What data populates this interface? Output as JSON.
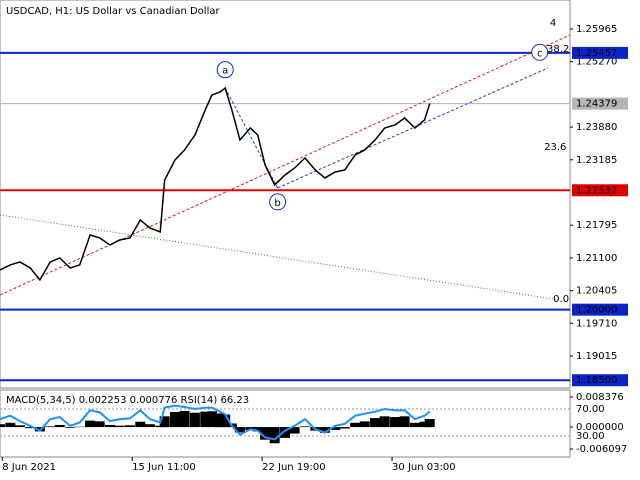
{
  "chart_data": {
    "type": "line",
    "title": "USDCAD, H1:  US Dollar vs Canadian Dollar",
    "x": [
      0,
      14,
      27,
      41,
      54,
      68,
      81,
      95,
      108,
      122,
      135,
      149,
      162,
      176,
      190,
      203,
      217,
      223,
      237,
      250,
      264,
      278,
      287,
      298,
      305,
      314,
      325,
      339,
      349,
      359,
      372,
      386,
      399,
      413,
      427,
      440,
      454,
      467,
      481,
      494,
      508,
      521,
      535,
      548,
      562,
      575,
      582
    ],
    "values": [
      1.20843,
      1.2095,
      1.21014,
      1.20886,
      1.20631,
      1.21014,
      1.21099,
      1.20886,
      1.2095,
      1.21587,
      1.21524,
      1.21375,
      1.21481,
      1.21524,
      1.21906,
      1.21736,
      1.21651,
      1.22756,
      1.23181,
      1.23394,
      1.23712,
      1.24244,
      1.24562,
      1.24626,
      1.24711,
      1.24244,
      1.23606,
      1.23861,
      1.23712,
      1.23075,
      1.2265,
      1.22862,
      1.23011,
      1.23224,
      1.22969,
      1.22799,
      1.22926,
      1.22969,
      1.23287,
      1.23394,
      1.23606,
      1.23861,
      1.23925,
      1.24074,
      1.23861,
      1.24031,
      1.24379
    ],
    "color": "#000000",
    "xlim": [
      0,
      772
    ],
    "xticks": [
      {
        "value": 3,
        "label": "8 Jun 2021"
      },
      {
        "value": 179,
        "label": "15 Jun 11:00"
      },
      {
        "value": 355,
        "label": "22 Jun 19:00"
      },
      {
        "value": 531,
        "label": "30 Jun 03:00"
      }
    ],
    "ylim": [
      1.18335,
      1.26581
    ],
    "yticks": [
      {
        "value": 1.25965,
        "label": "1.25965"
      },
      {
        "value": 1.2527,
        "label": "1.25270"
      },
      {
        "value": 1.2388,
        "label": "1.23880"
      },
      {
        "value": 1.23185,
        "label": "1.23185"
      },
      {
        "value": 1.21795,
        "label": "1.21795"
      },
      {
        "value": 1.211,
        "label": "1.21100"
      },
      {
        "value": 1.20405,
        "label": "1.20405"
      },
      {
        "value": 1.1971,
        "label": "1.19710"
      },
      {
        "value": 1.19015,
        "label": "1.19015"
      }
    ],
    "levels": [
      {
        "value": 1.25457,
        "label": "1.25457",
        "color": "#0b24c9"
      },
      {
        "value": 1.22537,
        "label": "1.22537",
        "color": "#e00000"
      },
      {
        "value": 1.2,
        "label": "1.20000",
        "color": "#0b24c9"
      },
      {
        "value": 1.185,
        "label": "1.18500",
        "color": "#0b24c9"
      }
    ],
    "current": {
      "value": 1.24379,
      "label": "1.24379",
      "color": "#b4b4b4"
    },
    "drawings": [
      {
        "x": [
          0,
          772
        ],
        "y": [
          1.20312,
          1.25837
        ],
        "color": "#d02020",
        "style": "dashed"
      },
      {
        "x": [
          376,
          742
        ],
        "y": [
          1.22586,
          1.25136
        ],
        "color": "#2040d0",
        "style": "dashed"
      },
      {
        "x": [
          305,
          376
        ],
        "y": [
          1.24711,
          1.22586
        ],
        "color": "#2040d0",
        "style": "dashed"
      },
      {
        "x": [
          0,
          758
        ],
        "y": [
          1.22012,
          1.20206
        ],
        "color": "#2a8a2a",
        "style": "dotted"
      }
    ],
    "annotations": [
      {
        "text": "a",
        "x": 305,
        "y": 1.251,
        "color": "#1030c0",
        "circled": true
      },
      {
        "text": "b",
        "x": 376,
        "y": 1.2229,
        "color": "#1030c0",
        "circled": true
      },
      {
        "text": "c",
        "x": 731,
        "y": 1.2547,
        "color": "#1030c0",
        "circled": true
      },
      {
        "text": "4",
        "x": 749,
        "y": 1.2611,
        "color": "#a03020",
        "circled": false
      },
      {
        "text": "38.2",
        "x": 756,
        "y": 1.2556,
        "color": "#808080",
        "circled": false
      },
      {
        "text": "23.6",
        "x": 752,
        "y": 1.2348,
        "color": "#808080",
        "circled": false
      },
      {
        "text": "0.0",
        "x": 760,
        "y": 1.2025,
        "color": "#808080",
        "circled": false
      }
    ],
    "indicator": {
      "title": "MACD(5,34,5) 0.002253 0.000776 RSI(14) 66.23",
      "macd": {
        "color": "#000000",
        "values": [
          0.0008,
          0.0012,
          0.0005,
          -0.0003,
          -0.0012,
          0.0002,
          0.0006,
          -0.0002,
          0.0001,
          0.0018,
          0.0016,
          0.0006,
          0.0004,
          0.0005,
          0.0015,
          0.0008,
          0.0004,
          0.003,
          0.0042,
          0.0045,
          0.004,
          0.0043,
          0.0044,
          0.0038,
          0.0035,
          0.001,
          -0.0015,
          -0.0008,
          -0.0012,
          -0.0035,
          -0.0045,
          -0.003,
          -0.0018,
          0.0002,
          -0.001,
          -0.0016,
          -0.0008,
          -0.0004,
          0.0012,
          0.0016,
          0.0025,
          0.003,
          0.0028,
          0.003,
          0.0012,
          0.0015,
          0.002253
        ]
      },
      "rsi": {
        "color": "#1e90ff",
        "values": [
          55,
          60,
          52,
          45,
          38,
          55,
          58,
          45,
          50,
          68,
          65,
          52,
          55,
          56,
          68,
          55,
          50,
          72,
          75,
          73,
          70,
          72,
          72,
          66,
          62,
          45,
          32,
          40,
          38,
          28,
          25,
          38,
          45,
          55,
          40,
          35,
          45,
          48,
          60,
          63,
          66,
          70,
          68,
          68,
          55,
          60,
          66.23
        ]
      },
      "ylim": [
        -0.008321,
        0.010322
      ],
      "yticks": [
        {
          "value": 0.008376,
          "label": "0.008376"
        },
        {
          "value": 0,
          "label": "0.000000"
        },
        {
          "value": -0.006097,
          "label": "-0.006097"
        }
      ],
      "y2lim": [
        -1.1,
        98.1
      ],
      "y2ticks": [
        {
          "value": 70,
          "label": "70.00"
        },
        {
          "value": 30,
          "label": "30.00"
        }
      ]
    }
  }
}
